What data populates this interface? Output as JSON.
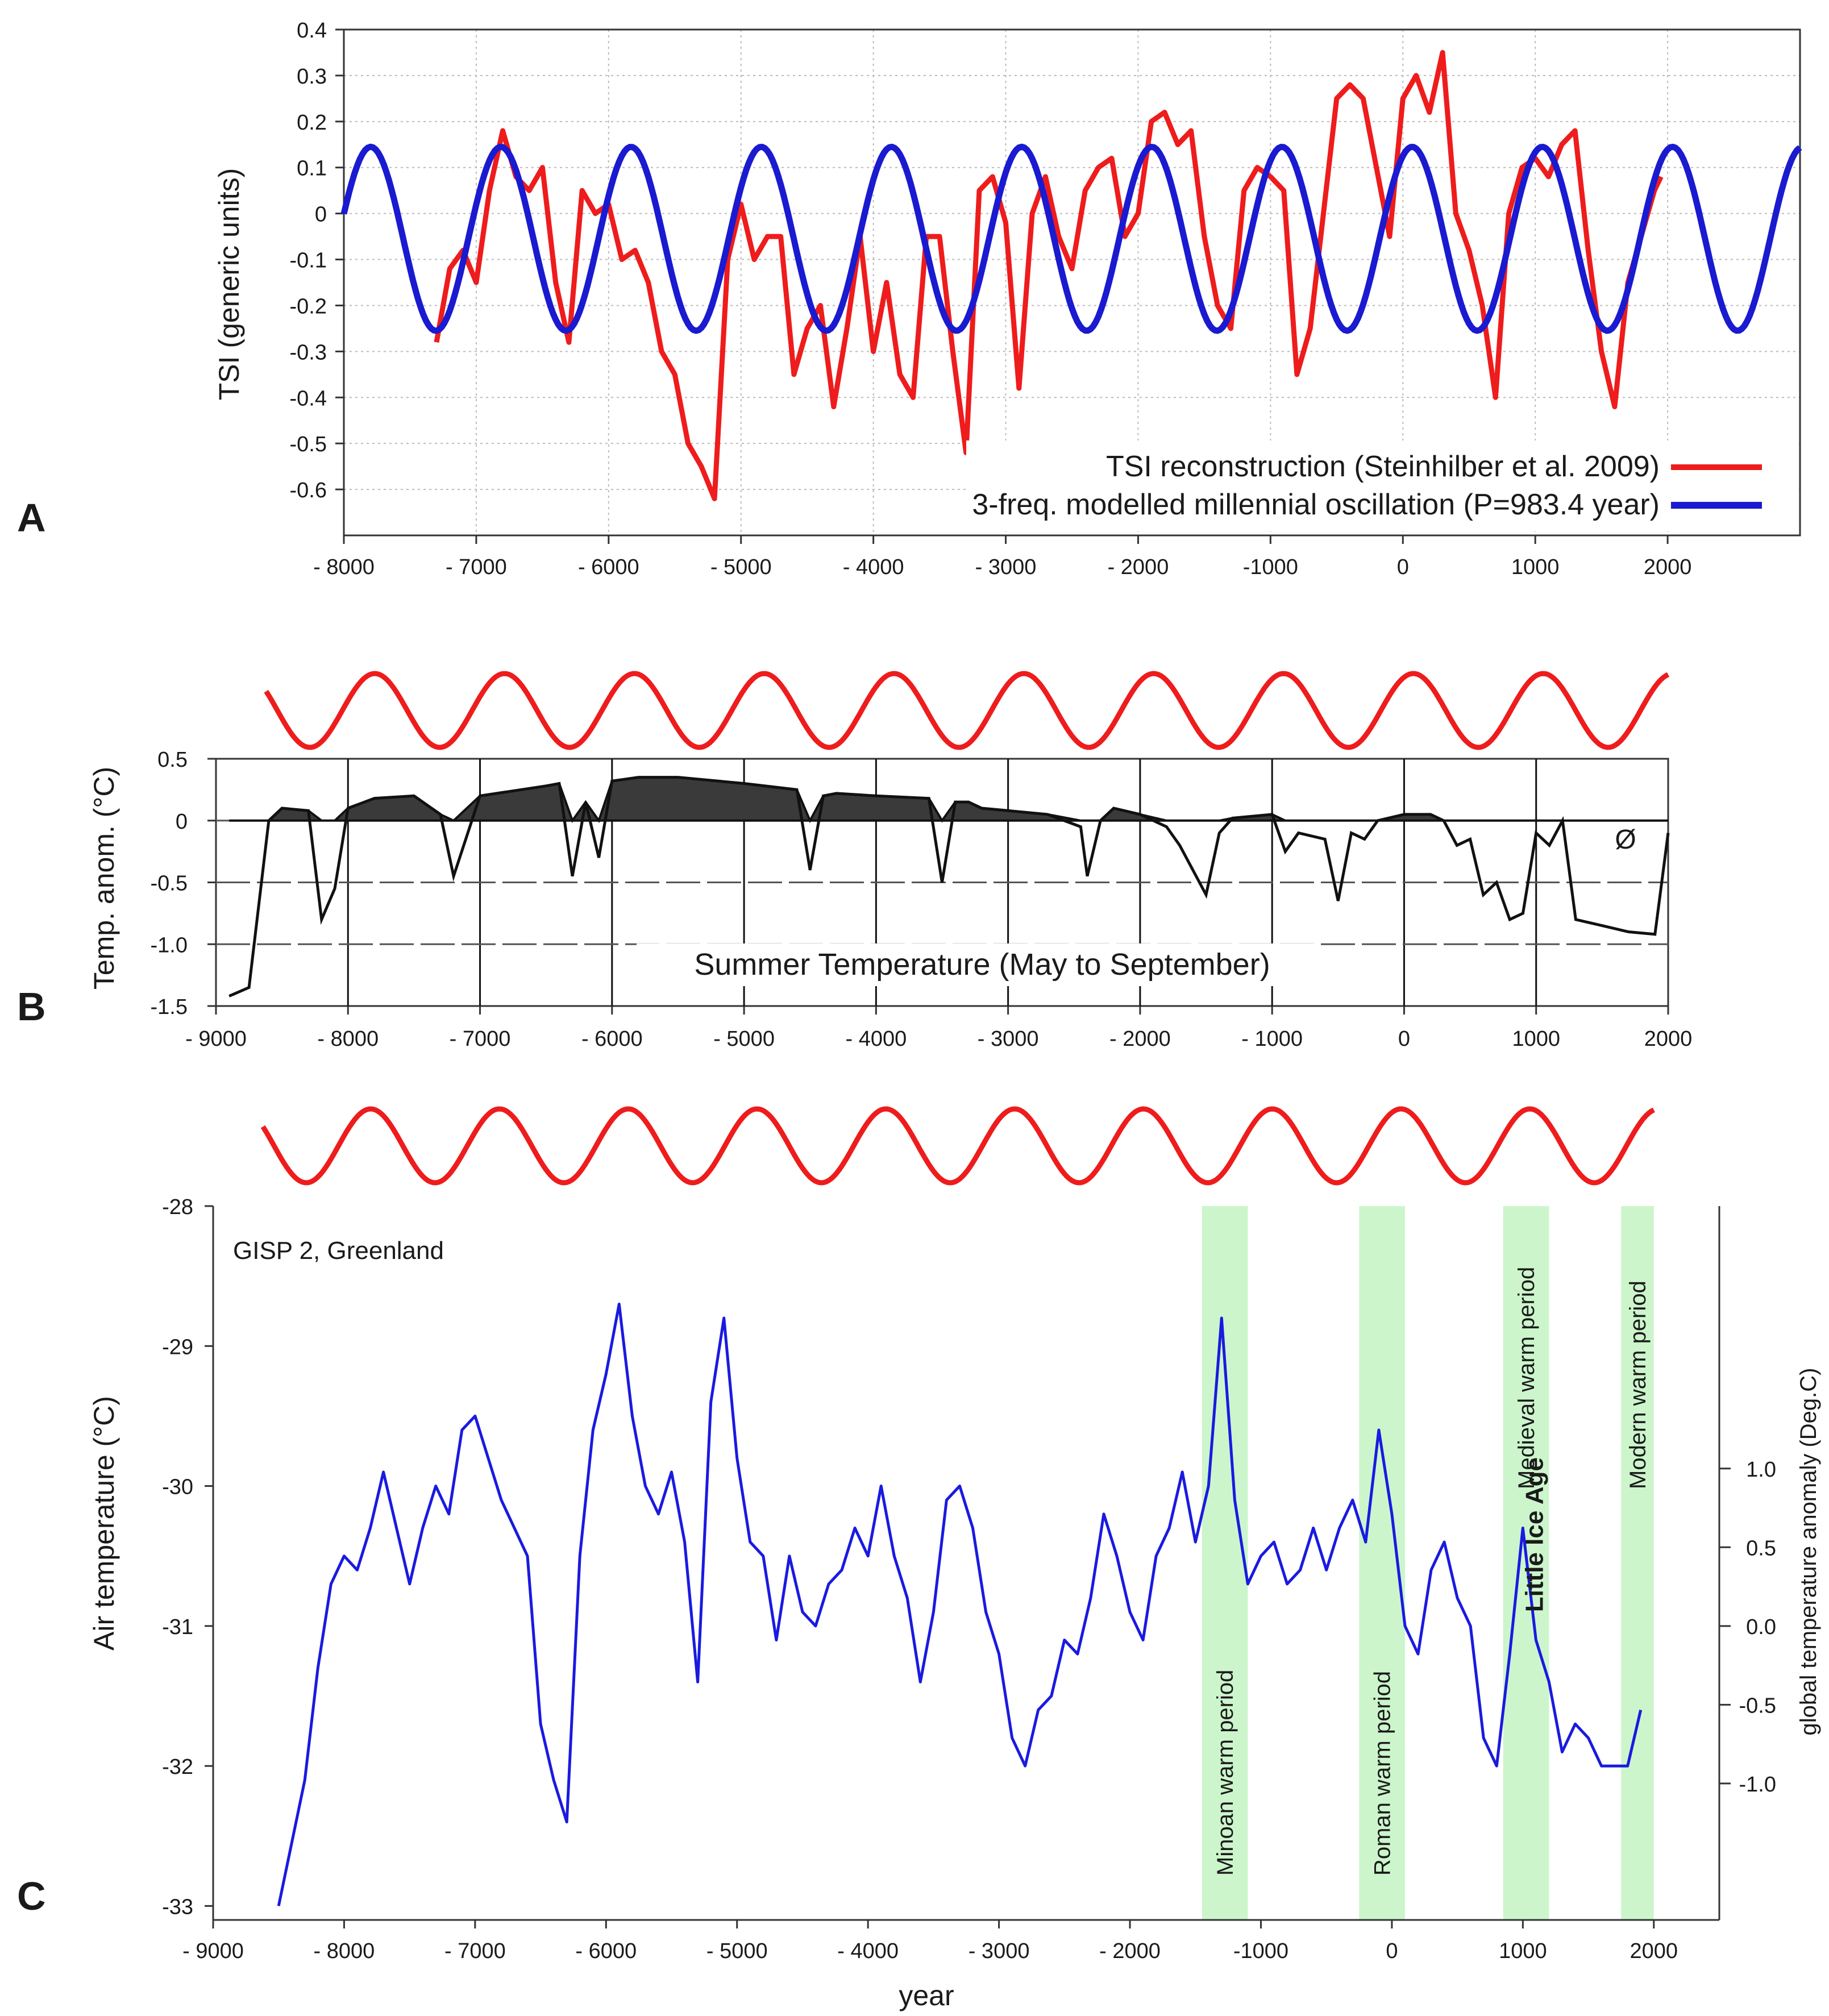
{
  "chart_data": [
    {
      "panel": "A",
      "type": "line",
      "panel_label": "A",
      "ylabel": "TSI (generic units)",
      "xlim": [
        -8000,
        3000
      ],
      "ylim": [
        -0.7,
        0.4
      ],
      "x_ticks": [
        -8000,
        -7000,
        -6000,
        -5000,
        -4000,
        -3000,
        -2000,
        -1000,
        0,
        1000,
        2000
      ],
      "x_tick_labels": [
        "- 8000",
        "- 7000",
        "- 6000",
        "- 5000",
        "- 4000",
        "- 3000",
        "- 2000",
        "-1000",
        "0",
        "1000",
        "2000"
      ],
      "y_ticks": [
        0.4,
        0.3,
        0.2,
        0.1,
        0,
        -0.1,
        -0.2,
        -0.3,
        -0.4,
        -0.5,
        -0.6
      ],
      "y_tick_labels": [
        "0.4",
        "0.3",
        "0.2",
        "0.1",
        "0",
        "-0.1",
        "-0.2",
        "-0.3",
        "-0.4",
        "-0.5",
        "-0.6"
      ],
      "grid": true,
      "legend_position": "bottom-right",
      "series": [
        {
          "name": "TSI reconstruction (Steinhilber et al. 2009)",
          "color": "#ee1c1c",
          "x": [
            -7300,
            -7200,
            -7100,
            -7000,
            -6900,
            -6800,
            -6700,
            -6600,
            -6500,
            -6400,
            -6300,
            -6200,
            -6100,
            -6000,
            -5900,
            -5800,
            -5700,
            -5600,
            -5500,
            -5400,
            -5300,
            -5200,
            -5100,
            -5000,
            -4900,
            -4800,
            -4700,
            -4600,
            -4500,
            -4400,
            -4300,
            -4200,
            -4100,
            -4000,
            -3900,
            -3800,
            -3700,
            -3600,
            -3500,
            -3400,
            -3300,
            -3200,
            -3100,
            -3000,
            -2900,
            -2800,
            -2700,
            -2600,
            -2500,
            -2400,
            -2300,
            -2200,
            -2100,
            -2000,
            -1900,
            -1800,
            -1700,
            -1600,
            -1500,
            -1400,
            -1300,
            -1200,
            -1100,
            -1000,
            -900,
            -800,
            -700,
            -600,
            -500,
            -400,
            -300,
            -200,
            -100,
            0,
            100,
            200,
            300,
            400,
            500,
            600,
            700,
            800,
            900,
            1000,
            1100,
            1200,
            1300,
            1400,
            1500,
            1600,
            1700,
            1800,
            1900,
            1950
          ],
          "values": [
            -0.28,
            -0.12,
            -0.08,
            -0.15,
            0.05,
            0.18,
            0.08,
            0.05,
            0.1,
            -0.15,
            -0.28,
            0.05,
            0.0,
            0.02,
            -0.1,
            -0.08,
            -0.15,
            -0.3,
            -0.35,
            -0.5,
            -0.55,
            -0.62,
            -0.1,
            0.02,
            -0.1,
            -0.05,
            -0.05,
            -0.35,
            -0.25,
            -0.2,
            -0.42,
            -0.25,
            -0.05,
            -0.3,
            -0.15,
            -0.35,
            -0.4,
            -0.05,
            -0.05,
            -0.3,
            -0.52,
            0.05,
            0.08,
            -0.02,
            -0.38,
            0.0,
            0.08,
            -0.05,
            -0.12,
            0.05,
            0.1,
            0.12,
            -0.05,
            0.0,
            0.2,
            0.22,
            0.15,
            0.18,
            -0.05,
            -0.2,
            -0.25,
            0.05,
            0.1,
            0.08,
            0.05,
            -0.35,
            -0.25,
            0.0,
            0.25,
            0.28,
            0.25,
            0.1,
            -0.05,
            0.25,
            0.3,
            0.22,
            0.35,
            0.0,
            -0.08,
            -0.2,
            -0.4,
            0.0,
            0.1,
            0.12,
            0.08,
            0.15,
            0.18,
            -0.08,
            -0.3,
            -0.42,
            -0.15,
            -0.05,
            0.05,
            0.08
          ]
        },
        {
          "name": "3-freq. modelled millennial oscillation (P=983.4 year)",
          "color": "#1a1ad0",
          "function": "sine",
          "period_years": 983.4,
          "peak_year": 70,
          "mean": -0.055,
          "amplitude": 0.2,
          "x_range": [
            -8000,
            3000
          ]
        }
      ]
    },
    {
      "panel": "B",
      "type": "area",
      "panel_label": "B",
      "ylabel": "Temp. anom. (°C)",
      "annotation": "Summer Temperature (May to September)",
      "zero_marker": "Ø",
      "xlim": [
        -9000,
        2000
      ],
      "ylim": [
        -1.5,
        0.5
      ],
      "x_ticks": [
        -9000,
        -8000,
        -7000,
        -6000,
        -5000,
        -4000,
        -3000,
        -2000,
        -1000,
        0,
        1000,
        2000
      ],
      "x_tick_labels": [
        "- 9000",
        "- 8000",
        "- 7000",
        "- 6000",
        "- 5000",
        "- 4000",
        "- 3000",
        "- 2000",
        "- 1000",
        "0",
        "1000",
        "2000"
      ],
      "y_ticks": [
        0.5,
        0,
        -0.5,
        -1.0,
        -1.5
      ],
      "y_tick_labels": [
        "0.5",
        "0",
        "-0.5",
        "-1.0",
        "-1.5"
      ],
      "reference_wave": {
        "color": "#ee1c1c",
        "period_years": 983.4,
        "peak_year": 70
      },
      "series": [
        {
          "name": "Summer Temperature (May to September)",
          "color": "#111111",
          "x": [
            -8900,
            -8750,
            -8600,
            -8500,
            -8300,
            -8200,
            -8100,
            -8000,
            -7800,
            -7500,
            -7300,
            -7200,
            -7000,
            -6500,
            -6400,
            -6300,
            -6200,
            -6100,
            -6000,
            -5800,
            -5500,
            -5000,
            -4600,
            -4500,
            -4400,
            -4300,
            -4000,
            -3600,
            -3500,
            -3400,
            -3300,
            -3200,
            -3000,
            -2700,
            -2450,
            -2400,
            -2300,
            -2200,
            -2000,
            -1800,
            -1700,
            -1500,
            -1400,
            -1300,
            -1000,
            -900,
            -800,
            -600,
            -500,
            -400,
            -300,
            -200,
            0,
            200,
            300,
            400,
            500,
            600,
            700,
            800,
            900,
            1000,
            1100,
            1200,
            1300,
            1500,
            1700,
            1900,
            2000
          ],
          "values": [
            -1.42,
            -1.35,
            0.0,
            0.1,
            0.08,
            -0.8,
            -0.55,
            0.1,
            0.18,
            0.2,
            0.05,
            -0.45,
            0.2,
            0.28,
            0.3,
            -0.45,
            0.15,
            -0.3,
            0.32,
            0.35,
            0.35,
            0.3,
            0.25,
            -0.4,
            0.2,
            0.22,
            0.2,
            0.18,
            -0.5,
            0.15,
            0.15,
            0.1,
            0.08,
            0.05,
            -0.05,
            -0.45,
            0.0,
            0.1,
            0.05,
            -0.05,
            -0.2,
            -0.6,
            -0.1,
            0.02,
            0.05,
            -0.25,
            -0.1,
            -0.15,
            -0.65,
            -0.1,
            -0.15,
            0.0,
            0.05,
            0.05,
            0.0,
            -0.2,
            -0.15,
            -0.6,
            -0.5,
            -0.8,
            -0.75,
            -0.1,
            -0.2,
            0.0,
            -0.8,
            -0.85,
            -0.9,
            -0.92,
            -0.1
          ]
        }
      ]
    },
    {
      "panel": "C",
      "type": "line",
      "panel_label": "C",
      "title": "GISP 2, Greenland",
      "xlabel": "year",
      "ylabel": "Air temperature (°C)",
      "ylabel_right": "global temperature anomaly (Deg.C)",
      "xlim": [
        -9000,
        2500
      ],
      "ylim": [
        -33.1,
        -28
      ],
      "x_ticks": [
        -9000,
        -8000,
        -7000,
        -6000,
        -5000,
        -4000,
        -3000,
        -2000,
        -1000,
        0,
        1000,
        2000
      ],
      "x_tick_labels": [
        "- 9000",
        "- 8000",
        "- 7000",
        "- 6000",
        "- 5000",
        "- 4000",
        "- 3000",
        "- 2000",
        "-1000",
        "0",
        "1000",
        "2000"
      ],
      "y_ticks": [
        -28,
        -29,
        -30,
        -31,
        -32,
        -33
      ],
      "y_tick_labels": [
        "-28",
        "-29",
        "-30",
        "-31",
        "-32",
        "-33"
      ],
      "y2_ticks": [
        1.0,
        0.5,
        0.0,
        -0.5,
        -1.0
      ],
      "y2_tick_labels": [
        "1.0",
        "0.5",
        "0.0",
        "-0.5",
        "-1.0"
      ],
      "reference_wave": {
        "color": "#ee1c1c",
        "period_years": 983.4,
        "peak_year": 70
      },
      "highlights": [
        {
          "label": "Minoan warm period",
          "x_start": -1450,
          "x_end": -1100,
          "color": "#ccf5cc"
        },
        {
          "label": "Roman warm period",
          "x_start": -250,
          "x_end": 100,
          "color": "#ccf5cc"
        },
        {
          "label": "Medieval warm period",
          "x_start": 850,
          "x_end": 1200,
          "color": "#ccf5cc"
        },
        {
          "label": "Modern warm period",
          "x_start": 1750,
          "x_end": 2000,
          "color": "#ccf5cc"
        }
      ],
      "annotations": [
        {
          "text": "Little Ice Age",
          "x": 1500,
          "y": -30.9,
          "color": "#1a1ad0"
        }
      ],
      "series": [
        {
          "name": "GISP 2, Greenland",
          "color": "#1a1ae0",
          "x": [
            -8500,
            -8300,
            -8200,
            -8100,
            -8000,
            -7900,
            -7800,
            -7700,
            -7600,
            -7500,
            -7400,
            -7300,
            -7200,
            -7100,
            -7000,
            -6900,
            -6800,
            -6700,
            -6600,
            -6500,
            -6400,
            -6300,
            -6200,
            -6100,
            -6000,
            -5900,
            -5800,
            -5700,
            -5600,
            -5500,
            -5400,
            -5300,
            -5200,
            -5100,
            -5000,
            -4900,
            -4800,
            -4700,
            -4600,
            -4500,
            -4400,
            -4300,
            -4200,
            -4100,
            -4000,
            -3900,
            -3800,
            -3700,
            -3600,
            -3500,
            -3400,
            -3300,
            -3200,
            -3100,
            -3000,
            -2900,
            -2800,
            -2700,
            -2600,
            -2500,
            -2400,
            -2300,
            -2200,
            -2100,
            -2000,
            -1900,
            -1800,
            -1700,
            -1600,
            -1500,
            -1400,
            -1300,
            -1200,
            -1100,
            -1000,
            -900,
            -800,
            -700,
            -600,
            -500,
            -400,
            -300,
            -200,
            -100,
            0,
            100,
            200,
            300,
            400,
            500,
            600,
            700,
            800,
            900,
            1000,
            1100,
            1200,
            1300,
            1400,
            1500,
            1600,
            1700,
            1800,
            1900
          ],
          "values": [
            -33.0,
            -32.1,
            -31.3,
            -30.7,
            -30.5,
            -30.6,
            -30.3,
            -29.9,
            -30.3,
            -30.7,
            -30.3,
            -30.0,
            -30.2,
            -29.6,
            -29.5,
            -29.8,
            -30.1,
            -30.3,
            -30.5,
            -31.7,
            -32.1,
            -32.4,
            -30.5,
            -29.6,
            -29.2,
            -28.7,
            -29.5,
            -30.0,
            -30.2,
            -29.9,
            -30.4,
            -31.4,
            -29.4,
            -28.8,
            -29.8,
            -30.4,
            -30.5,
            -31.1,
            -30.5,
            -30.9,
            -31.0,
            -30.7,
            -30.6,
            -30.3,
            -30.5,
            -30.0,
            -30.5,
            -30.8,
            -31.4,
            -30.9,
            -30.1,
            -30.0,
            -30.3,
            -30.9,
            -31.2,
            -31.8,
            -32.0,
            -31.6,
            -31.5,
            -31.1,
            -31.2,
            -30.8,
            -30.2,
            -30.5,
            -30.9,
            -31.1,
            -30.5,
            -30.3,
            -29.9,
            -30.4,
            -30.0,
            -28.8,
            -30.1,
            -30.7,
            -30.5,
            -30.4,
            -30.7,
            -30.6,
            -30.3,
            -30.6,
            -30.3,
            -30.1,
            -30.4,
            -29.6,
            -30.2,
            -31.0,
            -31.2,
            -30.6,
            -30.4,
            -30.8,
            -31.0,
            -31.8,
            -32.0,
            -31.2,
            -30.3,
            -31.1,
            -31.4,
            -31.9,
            -31.7,
            -31.8,
            -32.0,
            -32.0,
            -32.0,
            -31.6
          ]
        }
      ]
    }
  ]
}
